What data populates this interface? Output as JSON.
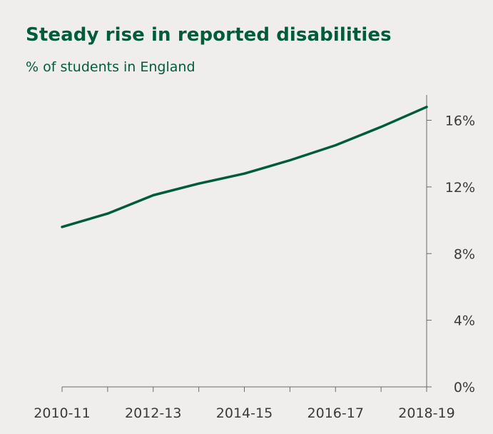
{
  "colors": {
    "background": "#efeeec",
    "accent": "#005c3b",
    "axis": "#6b6b6b",
    "text": "#3a3a3a"
  },
  "chart_data": {
    "type": "line",
    "title": "Steady rise in reported disabilities",
    "subtitle": "% of students in England",
    "xlabel": "",
    "ylabel": "",
    "x_ticks": [
      "2010-11",
      "2012-13",
      "2014-15",
      "2016-17",
      "2018-19"
    ],
    "y_ticks": [
      "0%",
      "4%",
      "8%",
      "12%",
      "16%"
    ],
    "ylim": [
      0,
      17.5
    ],
    "y_axis_side": "right",
    "grid": false,
    "legend": "none",
    "series": [
      {
        "x": [
          "2010-11",
          "2011-12",
          "2012-13",
          "2013-14",
          "2014-15",
          "2015-16",
          "2016-17",
          "2017-18",
          "2018-19"
        ],
        "values": [
          9.6,
          10.4,
          11.5,
          12.2,
          12.8,
          13.6,
          14.5,
          15.6,
          16.8
        ]
      }
    ]
  }
}
